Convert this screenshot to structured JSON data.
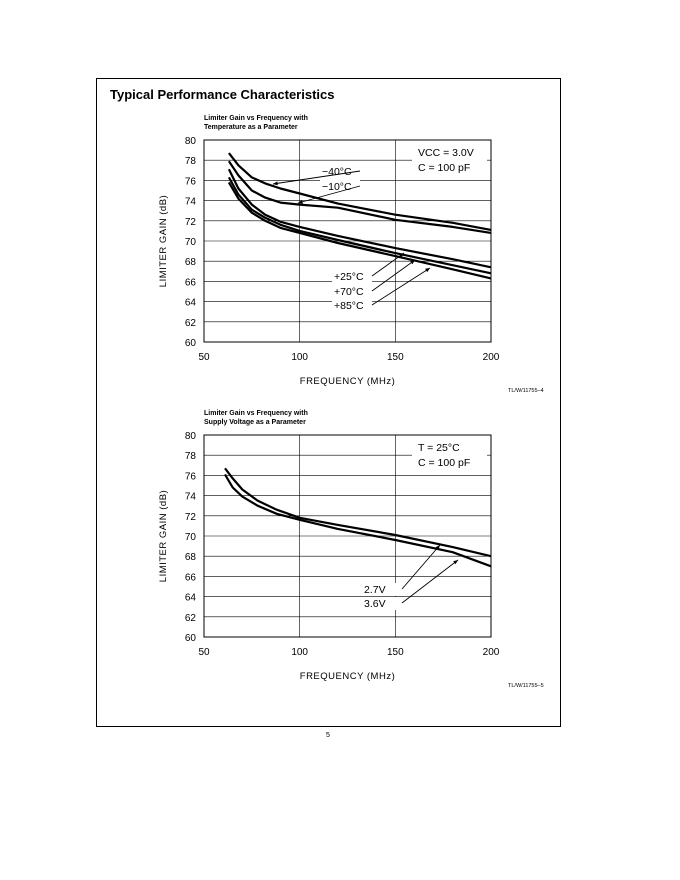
{
  "page": {
    "section_title": "Typical Performance Characteristics",
    "page_number": "5"
  },
  "chart_data": [
    {
      "type": "line",
      "title_line1": "Limiter Gain vs Frequency with",
      "title_line2": "Temperature as a Parameter",
      "xlabel": "FREQUENCY (MHz)",
      "ylabel": "LIMITER GAIN (dB)",
      "xlim": [
        50,
        200
      ],
      "ylim": [
        60,
        80
      ],
      "xticks": [
        50,
        100,
        150,
        200
      ],
      "yticks": [
        60,
        62,
        64,
        66,
        68,
        70,
        72,
        74,
        76,
        78,
        80
      ],
      "grid": true,
      "annotation_lines": [
        "VCC = 3.0V",
        "C = 100 pF"
      ],
      "figure_id": "TL/W/11755–4",
      "series": [
        {
          "name": "−40°C",
          "x": [
            63,
            68,
            75,
            82,
            90,
            100,
            120,
            150,
            180,
            200
          ],
          "y": [
            78.7,
            77.5,
            76.3,
            75.7,
            75.2,
            74.7,
            73.7,
            72.6,
            71.8,
            71.1
          ]
        },
        {
          "name": "−10°C",
          "x": [
            63,
            68,
            75,
            82,
            90,
            100,
            120,
            150,
            180,
            200
          ],
          "y": [
            77.9,
            76.5,
            75.0,
            74.3,
            73.8,
            73.6,
            73.3,
            72.1,
            71.4,
            70.8
          ]
        },
        {
          "name": "+25°C",
          "x": [
            63,
            68,
            75,
            82,
            90,
            100,
            120,
            150,
            180,
            200
          ],
          "y": [
            77.1,
            75.2,
            73.6,
            72.6,
            71.9,
            71.4,
            70.5,
            69.3,
            68.2,
            67.4
          ]
        },
        {
          "name": "+70°C",
          "x": [
            63,
            68,
            75,
            82,
            90,
            100,
            120,
            150,
            180,
            200
          ],
          "y": [
            76.3,
            74.6,
            73.1,
            72.3,
            71.6,
            71.0,
            70.1,
            68.8,
            67.6,
            66.8
          ]
        },
        {
          "name": "+85°C",
          "x": [
            63,
            68,
            75,
            82,
            90,
            100,
            120,
            150,
            180,
            200
          ],
          "y": [
            75.8,
            74.2,
            72.8,
            72.0,
            71.3,
            70.8,
            69.8,
            68.5,
            67.2,
            66.3
          ]
        }
      ],
      "labels": [
        {
          "text": "−40°C",
          "series": 0,
          "at_x": 87
        },
        {
          "text": "−10°C",
          "series": 1,
          "at_x": 99
        },
        {
          "text": "+25°C",
          "series": 2,
          "at_x": 153
        },
        {
          "text": "+70°C",
          "series": 3,
          "at_x": 158
        },
        {
          "text": "+85°C",
          "series": 4,
          "at_x": 163
        }
      ]
    },
    {
      "type": "line",
      "title_line1": "Limiter Gain vs Frequency with",
      "title_line2": "Supply Voltage as a Parameter",
      "xlabel": "FREQUENCY (MHz)",
      "ylabel": "LIMITER GAIN (dB)",
      "xlim": [
        50,
        200
      ],
      "ylim": [
        60,
        80
      ],
      "xticks": [
        50,
        100,
        150,
        200
      ],
      "yticks": [
        60,
        62,
        64,
        66,
        68,
        70,
        72,
        74,
        76,
        78,
        80
      ],
      "grid": true,
      "annotation_lines": [
        "T = 25°C",
        "C = 100 pF"
      ],
      "figure_id": "TL/W/11755–5",
      "series": [
        {
          "name": "2.7V",
          "x": [
            61,
            65,
            70,
            78,
            88,
            100,
            120,
            150,
            180,
            200
          ],
          "y": [
            76.7,
            75.7,
            74.6,
            73.5,
            72.6,
            71.8,
            71.1,
            70.1,
            68.9,
            68.0
          ]
        },
        {
          "name": "3.6V",
          "x": [
            61,
            65,
            70,
            78,
            88,
            100,
            120,
            150,
            180,
            200
          ],
          "y": [
            76.1,
            74.8,
            73.9,
            73.0,
            72.2,
            71.6,
            70.7,
            69.6,
            68.4,
            67.0
          ]
        }
      ],
      "labels": [
        {
          "text": "2.7V",
          "series": 0,
          "at_x": 170
        },
        {
          "text": "3.6V",
          "series": 1,
          "at_x": 184
        }
      ]
    }
  ]
}
